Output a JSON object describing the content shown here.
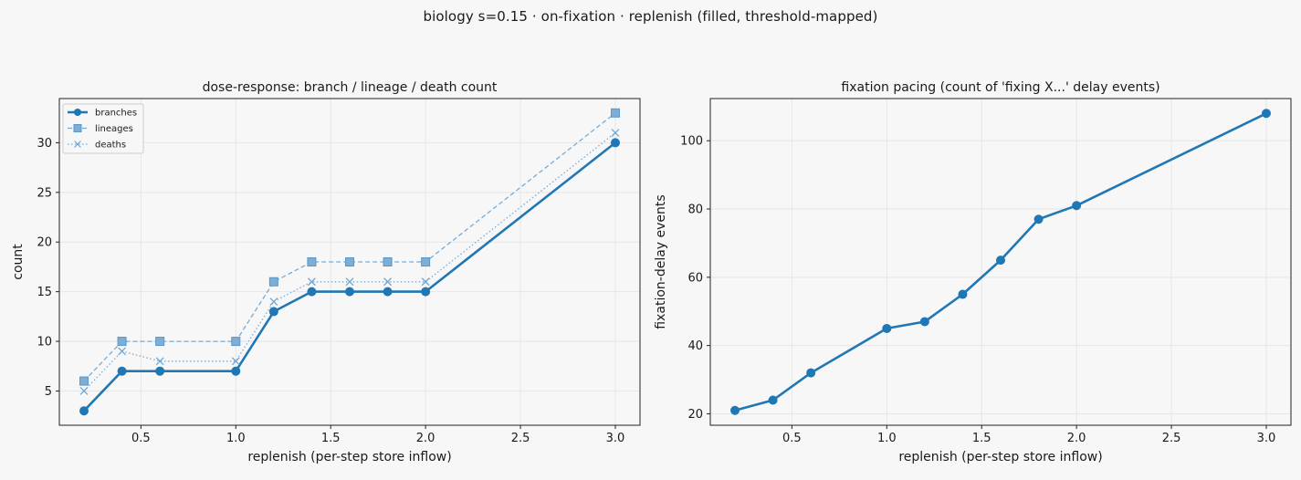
{
  "suptitle": "biology s=0.15 · on-fixation · replenish (filled, threshold-mapped)",
  "colors": {
    "dark": "#1f77b4",
    "light": "#6fa8d6",
    "grid": "#e6e6e6",
    "frame": "#222222",
    "background": "#f7f7f7"
  },
  "chart_data": [
    {
      "type": "line",
      "title": "dose-response: branch / lineage / death count",
      "xlabel": "replenish (per-step store inflow)",
      "ylabel": "count",
      "xlim": [
        0.07,
        3.13
      ],
      "ylim": [
        1.55,
        34.45
      ],
      "xticks": [
        0.5,
        1.0,
        1.5,
        2.0,
        2.5,
        3.0
      ],
      "xtick_labels": [
        "0.5",
        "1.0",
        "1.5",
        "2.0",
        "2.5",
        "3.0"
      ],
      "yticks": [
        5,
        10,
        15,
        20,
        25,
        30
      ],
      "ytick_labels": [
        "5",
        "10",
        "15",
        "20",
        "25",
        "30"
      ],
      "grid": true,
      "legend_position": "top-left",
      "x": [
        0.2,
        0.4,
        0.6,
        1.0,
        1.2,
        1.4,
        1.6,
        1.8,
        2.0,
        3.0
      ],
      "series": [
        {
          "name": "branches",
          "values": [
            3,
            7,
            7,
            7,
            13,
            15,
            15,
            15,
            15,
            30
          ],
          "marker": "circle",
          "style": "solid"
        },
        {
          "name": "lineages",
          "values": [
            6,
            10,
            10,
            10,
            16,
            18,
            18,
            18,
            18,
            33
          ],
          "marker": "square",
          "style": "dashed"
        },
        {
          "name": "deaths",
          "values": [
            5,
            9,
            8,
            8,
            14,
            16,
            16,
            16,
            16,
            31
          ],
          "marker": "x",
          "style": "dotted"
        }
      ]
    },
    {
      "type": "line",
      "title": "fixation pacing (count of 'fixing X...' delay events)",
      "xlabel": "replenish (per-step store inflow)",
      "ylabel": "fixation-delay events",
      "xlim": [
        0.07,
        3.13
      ],
      "ylim": [
        16.65,
        112.35
      ],
      "xticks": [
        0.5,
        1.0,
        1.5,
        2.0,
        2.5,
        3.0
      ],
      "xtick_labels": [
        "0.5",
        "1.0",
        "1.5",
        "2.0",
        "2.5",
        "3.0"
      ],
      "yticks": [
        20,
        40,
        60,
        80,
        100
      ],
      "ytick_labels": [
        "20",
        "40",
        "60",
        "80",
        "100"
      ],
      "grid": true,
      "x": [
        0.2,
        0.4,
        0.6,
        1.0,
        1.2,
        1.4,
        1.6,
        1.8,
        2.0,
        3.0
      ],
      "series": [
        {
          "values": [
            21,
            24,
            32,
            45,
            47,
            55,
            65,
            77,
            81,
            108
          ],
          "marker": "circle",
          "style": "solid"
        }
      ]
    }
  ]
}
